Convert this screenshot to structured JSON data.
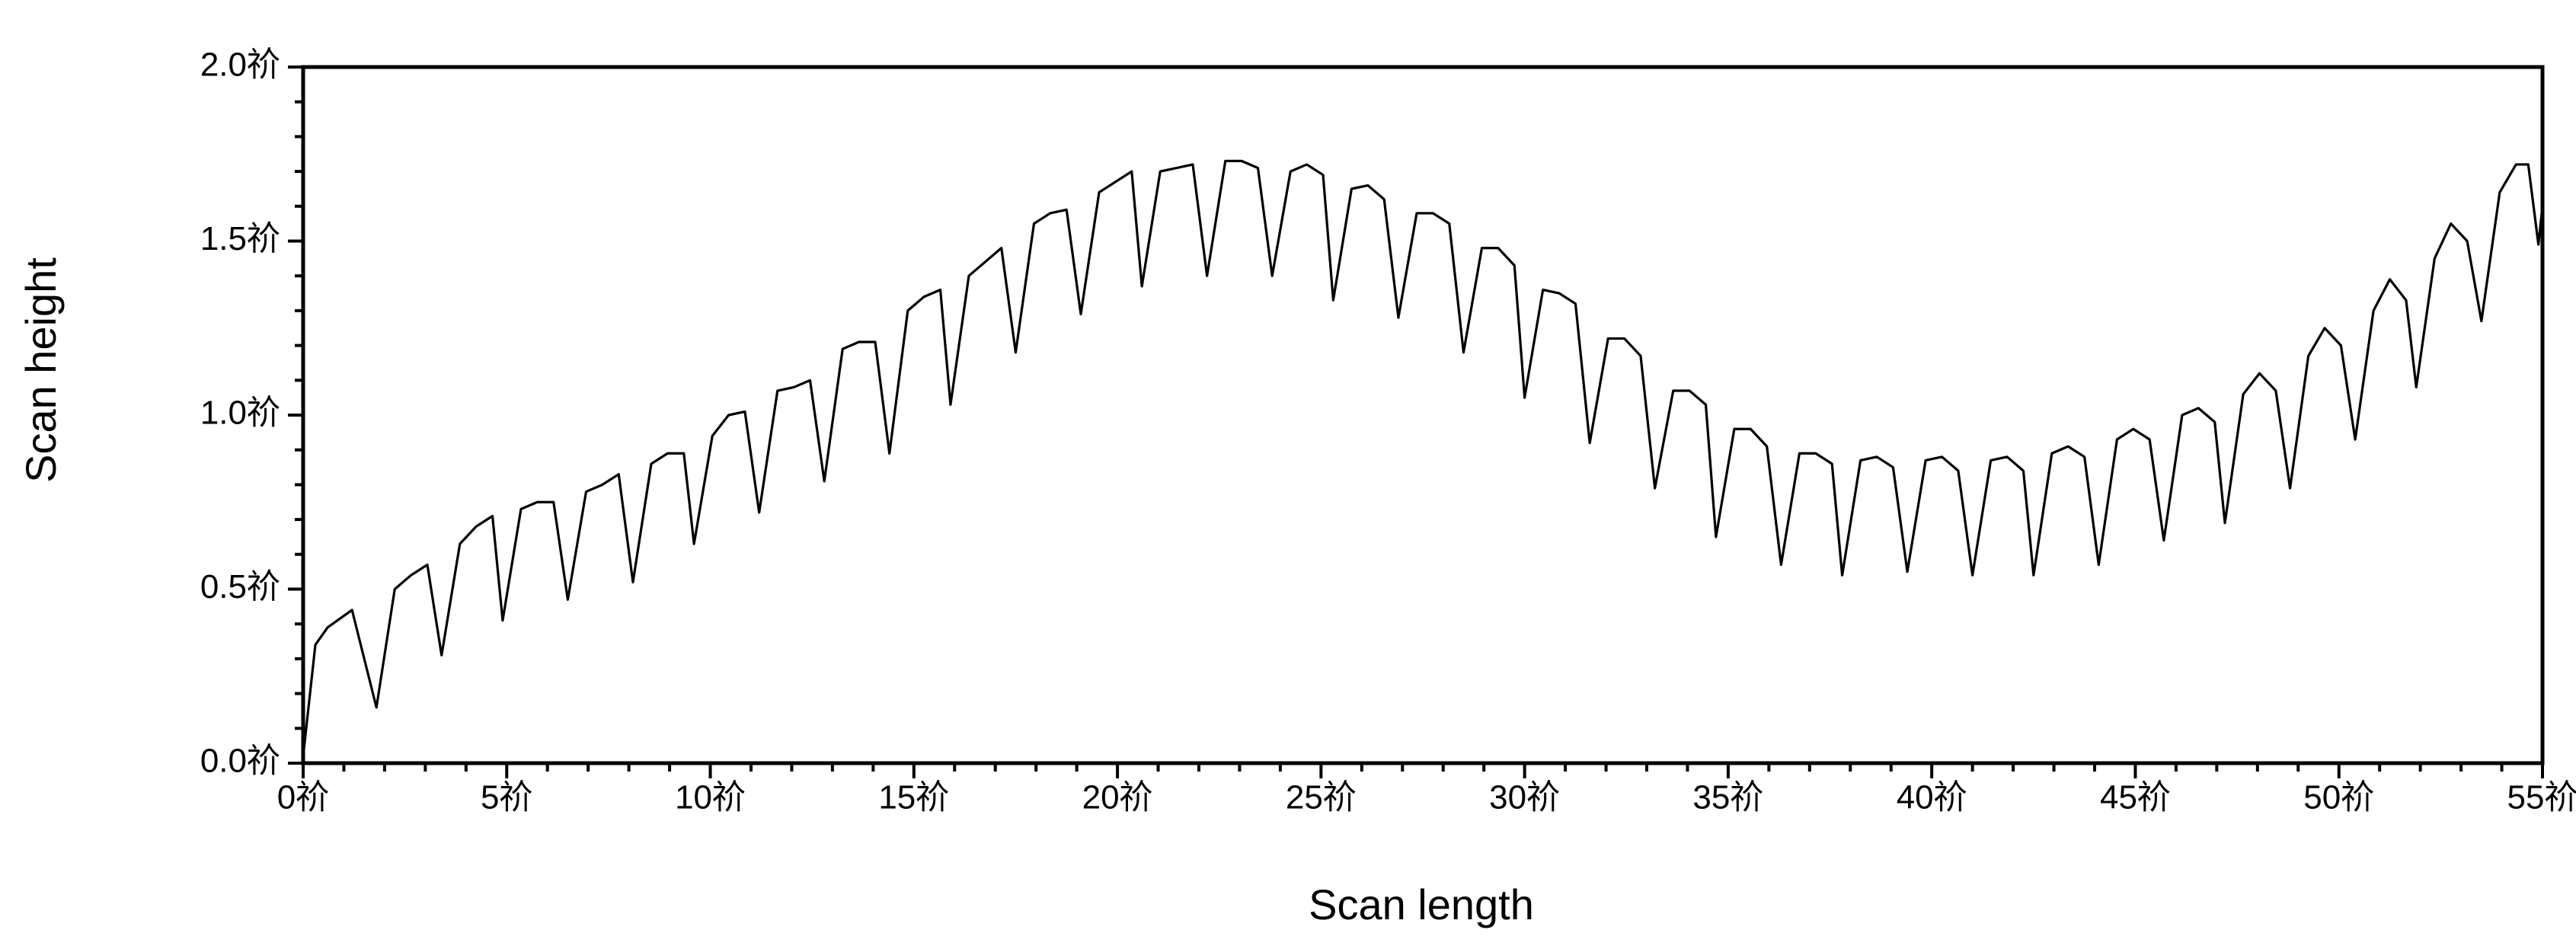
{
  "chart_data": {
    "type": "line",
    "xlabel": "Scan length",
    "ylabel": "Scan height",
    "color": "#000000",
    "xlim": [
      0,
      55
    ],
    "ylim": [
      0,
      2
    ],
    "xticks": [
      {
        "value": 0,
        "label": "0祄"
      },
      {
        "value": 5,
        "label": "5祄"
      },
      {
        "value": 10,
        "label": "10祄"
      },
      {
        "value": 15,
        "label": "15祄"
      },
      {
        "value": 20,
        "label": "20祄"
      },
      {
        "value": 25,
        "label": "25祄"
      },
      {
        "value": 30,
        "label": "30祄"
      },
      {
        "value": 35,
        "label": "35祄"
      },
      {
        "value": 40,
        "label": "40祄"
      },
      {
        "value": 45,
        "label": "45祄"
      },
      {
        "value": 50,
        "label": "50祄"
      },
      {
        "value": 55,
        "label": "55祄"
      }
    ],
    "yticks": [
      {
        "value": 0,
        "label": "0.0祄"
      },
      {
        "value": 0.5,
        "label": "0.5祄"
      },
      {
        "value": 1,
        "label": "1.0祄"
      },
      {
        "value": 1.5,
        "label": "1.5祄"
      },
      {
        "value": 2,
        "label": "2.0祄"
      }
    ],
    "xminorticks": [
      1,
      2,
      3,
      4,
      6,
      7,
      8,
      9,
      11,
      12,
      13,
      14,
      16,
      17,
      18,
      19,
      21,
      22,
      23,
      24,
      26,
      27,
      28,
      29,
      31,
      32,
      33,
      34,
      36,
      37,
      38,
      39,
      41,
      42,
      43,
      44,
      46,
      47,
      48,
      49,
      51,
      52,
      53,
      54
    ],
    "yminorticks": [
      0.1,
      0.2,
      0.3,
      0.4,
      0.6,
      0.7,
      0.8,
      0.9,
      1.1,
      1.2,
      1.3,
      1.4,
      1.6,
      1.7,
      1.8,
      1.9
    ],
    "x": [
      0,
      0.3,
      0.6,
      1.2,
      1.8,
      2.25,
      2.65,
      3.05,
      3.4,
      3.85,
      4.25,
      4.65,
      4.9,
      5.35,
      5.75,
      6.15,
      6.5,
      6.95,
      7.35,
      7.75,
      8.1,
      8.55,
      8.95,
      9.35,
      9.6,
      10.05,
      10.45,
      10.85,
      11.2,
      11.65,
      12.05,
      12.45,
      12.8,
      13.25,
      13.65,
      14.05,
      14.4,
      14.85,
      15.25,
      15.65,
      15.9,
      16.35,
      16.75,
      17.15,
      17.5,
      17.95,
      18.35,
      18.75,
      19.1,
      19.55,
      19.95,
      20.35,
      20.6,
      21.05,
      21.45,
      21.85,
      22.2,
      22.65,
      23.05,
      23.45,
      23.8,
      24.25,
      24.65,
      25.05,
      25.3,
      25.75,
      26.15,
      26.55,
      26.9,
      27.35,
      27.75,
      28.15,
      28.5,
      28.95,
      29.35,
      29.75,
      30.0,
      30.45,
      30.85,
      31.25,
      31.6,
      32.05,
      32.45,
      32.85,
      33.2,
      33.65,
      34.05,
      34.45,
      34.7,
      35.15,
      35.55,
      35.95,
      36.3,
      36.75,
      37.15,
      37.55,
      37.8,
      38.25,
      38.65,
      39.05,
      39.4,
      39.85,
      40.25,
      40.65,
      41.0,
      41.45,
      41.85,
      42.25,
      42.5,
      42.95,
      43.35,
      43.75,
      44.1,
      44.55,
      44.95,
      45.35,
      45.7,
      46.15,
      46.55,
      46.95,
      47.2,
      47.65,
      48.05,
      48.45,
      48.8,
      49.25,
      49.65,
      50.05,
      50.4,
      50.85,
      51.25,
      51.65,
      51.9,
      52.35,
      52.75,
      53.15,
      53.5,
      53.95,
      54.35,
      54.65,
      54.9,
      55
    ],
    "values": [
      0.02,
      0.34,
      0.39,
      0.44,
      0.16,
      0.5,
      0.54,
      0.57,
      0.31,
      0.63,
      0.68,
      0.71,
      0.41,
      0.73,
      0.75,
      0.75,
      0.47,
      0.78,
      0.8,
      0.83,
      0.52,
      0.86,
      0.89,
      0.89,
      0.63,
      0.94,
      1.0,
      1.01,
      0.72,
      1.07,
      1.08,
      1.1,
      0.81,
      1.19,
      1.21,
      1.21,
      0.89,
      1.3,
      1.34,
      1.36,
      1.03,
      1.4,
      1.44,
      1.48,
      1.18,
      1.55,
      1.58,
      1.59,
      1.29,
      1.64,
      1.67,
      1.7,
      1.37,
      1.7,
      1.71,
      1.72,
      1.4,
      1.73,
      1.73,
      1.71,
      1.4,
      1.7,
      1.72,
      1.69,
      1.33,
      1.65,
      1.66,
      1.62,
      1.28,
      1.58,
      1.58,
      1.55,
      1.18,
      1.48,
      1.48,
      1.43,
      1.05,
      1.36,
      1.35,
      1.32,
      0.92,
      1.22,
      1.22,
      1.17,
      0.79,
      1.07,
      1.07,
      1.03,
      0.65,
      0.96,
      0.96,
      0.91,
      0.57,
      0.89,
      0.89,
      0.86,
      0.54,
      0.87,
      0.88,
      0.85,
      0.55,
      0.87,
      0.88,
      0.84,
      0.54,
      0.87,
      0.88,
      0.84,
      0.54,
      0.89,
      0.91,
      0.88,
      0.57,
      0.93,
      0.96,
      0.93,
      0.64,
      1.0,
      1.02,
      0.98,
      0.69,
      1.06,
      1.12,
      1.07,
      0.79,
      1.17,
      1.25,
      1.2,
      0.93,
      1.3,
      1.39,
      1.33,
      1.08,
      1.45,
      1.55,
      1.5,
      1.27,
      1.64,
      1.72,
      1.72,
      1.49,
      1.6
    ]
  }
}
